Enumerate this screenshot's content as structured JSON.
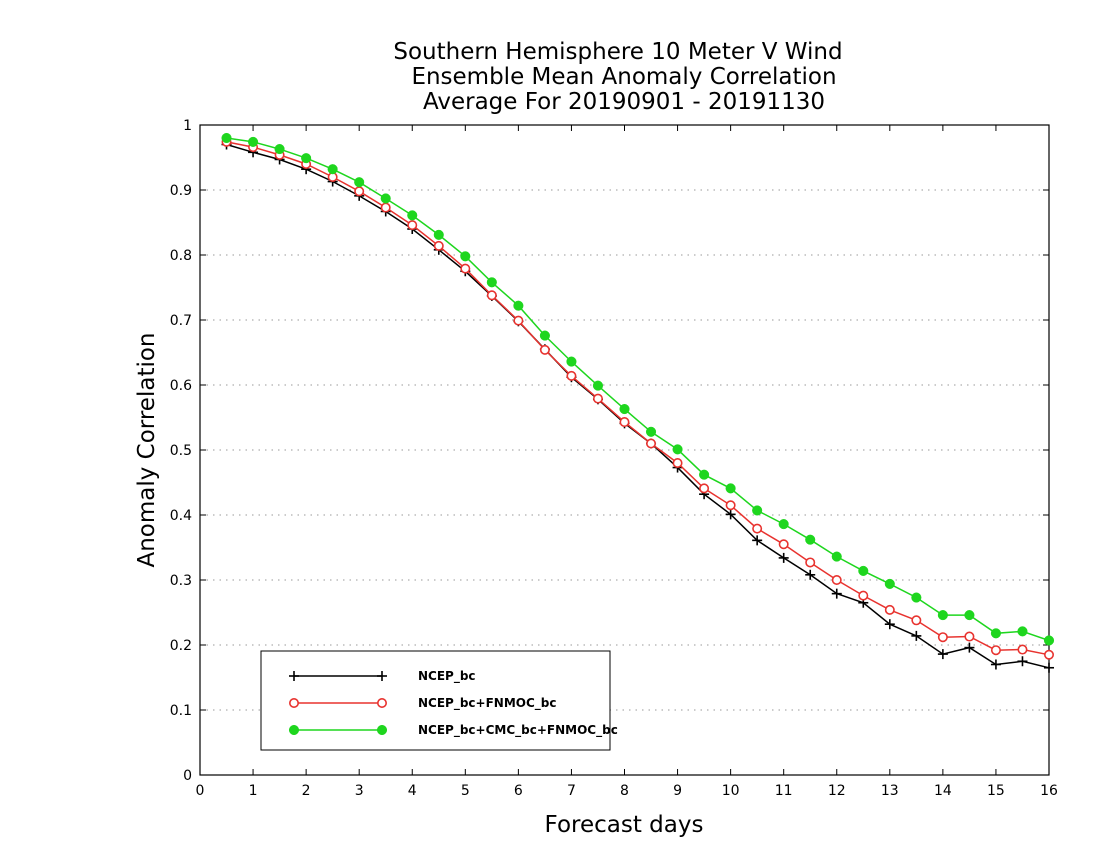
{
  "chart_data": {
    "type": "line",
    "title_lines": [
      "Southern Hemisphere 10 Meter V Wind",
      "Ensemble Mean Anomaly Correlation",
      "Average For 20190901 - 20191130"
    ],
    "xlabel": "Forecast days",
    "ylabel": "Anomaly Correlation",
    "xlim": [
      0,
      16
    ],
    "ylim": [
      0,
      1
    ],
    "xticks": [
      0,
      1,
      2,
      3,
      4,
      5,
      6,
      7,
      8,
      9,
      10,
      11,
      12,
      13,
      14,
      15,
      16
    ],
    "yticks": [
      0,
      0.1,
      0.2,
      0.3,
      0.4,
      0.5,
      0.6,
      0.7,
      0.8,
      0.9,
      1
    ],
    "xtick_labels": [
      "0",
      "1",
      "2",
      "3",
      "4",
      "5",
      "6",
      "7",
      "8",
      "9",
      "10",
      "11",
      "12",
      "13",
      "14",
      "15",
      "16"
    ],
    "ytick_labels": [
      "0",
      "0.1",
      "0.2",
      "0.3",
      "0.4",
      "0.5",
      "0.6",
      "0.7",
      "0.8",
      "0.9",
      "1"
    ],
    "grid": "horizontal-dotted",
    "legend_position": "bottom-left",
    "x": [
      0.5,
      1,
      1.5,
      2,
      2.5,
      3,
      3.5,
      4,
      4.5,
      5,
      5.5,
      6,
      6.5,
      7,
      7.5,
      8,
      8.5,
      9,
      9.5,
      10,
      10.5,
      11,
      11.5,
      12,
      12.5,
      13,
      13.5,
      14,
      14.5,
      15,
      15.5,
      16
    ],
    "series": [
      {
        "name": "NCEP_bc",
        "color": "#000000",
        "marker": "plus",
        "values": [
          0.97,
          0.958,
          0.947,
          0.932,
          0.913,
          0.891,
          0.867,
          0.84,
          0.808,
          0.775,
          0.737,
          0.698,
          0.655,
          0.612,
          0.578,
          0.541,
          0.51,
          0.473,
          0.432,
          0.401,
          0.361,
          0.334,
          0.308,
          0.279,
          0.265,
          0.232,
          0.214,
          0.186,
          0.196,
          0.17,
          0.175,
          0.165
        ]
      },
      {
        "name": "NCEP_bc+FNMOC_bc",
        "color": "#e8332f",
        "marker": "open-circle",
        "values": [
          0.974,
          0.966,
          0.954,
          0.94,
          0.92,
          0.898,
          0.873,
          0.846,
          0.814,
          0.779,
          0.738,
          0.699,
          0.654,
          0.614,
          0.579,
          0.543,
          0.51,
          0.48,
          0.441,
          0.415,
          0.379,
          0.355,
          0.327,
          0.3,
          0.276,
          0.254,
          0.238,
          0.212,
          0.213,
          0.192,
          0.193,
          0.185
        ]
      },
      {
        "name": "NCEP_bc+CMC_bc+FNMOC_bc",
        "color": "#1ed61e",
        "marker": "filled-circle",
        "values": [
          0.98,
          0.974,
          0.963,
          0.949,
          0.932,
          0.912,
          0.887,
          0.861,
          0.831,
          0.798,
          0.758,
          0.722,
          0.676,
          0.636,
          0.599,
          0.563,
          0.528,
          0.501,
          0.462,
          0.441,
          0.407,
          0.386,
          0.362,
          0.336,
          0.314,
          0.294,
          0.273,
          0.246,
          0.246,
          0.218,
          0.221,
          0.207
        ]
      }
    ]
  }
}
